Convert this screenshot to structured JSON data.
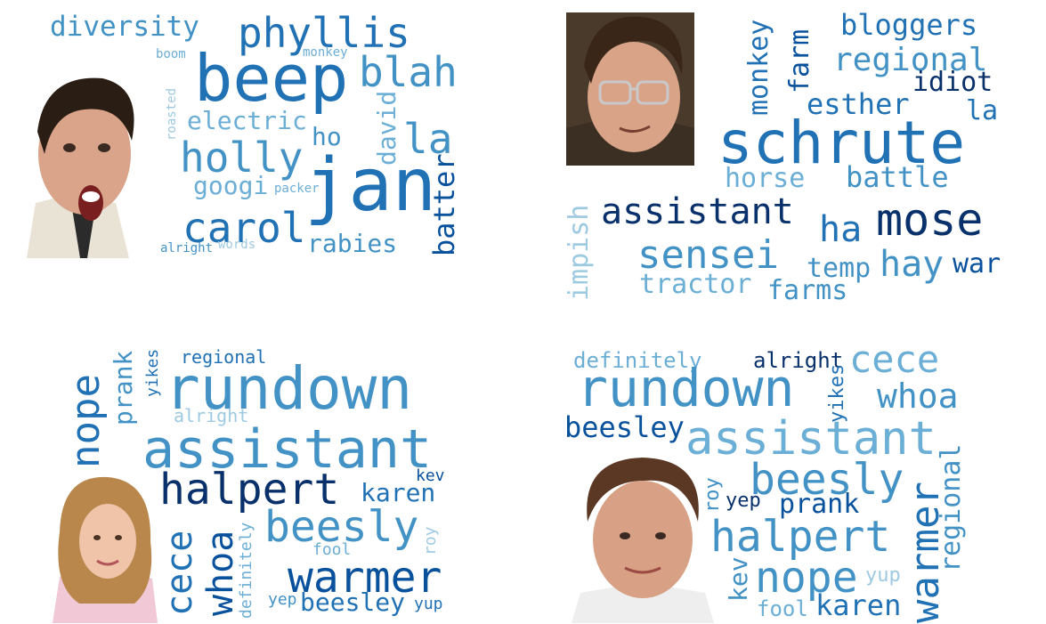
{
  "panels": [
    {
      "words": [
        "diversity",
        "phyllis",
        "boom",
        "monkey",
        "beep",
        "blah",
        "roasted",
        "electric",
        "david",
        "ho",
        "la",
        "holly",
        "googi",
        "packer",
        "jan",
        "batter",
        "carol",
        "rabies",
        "alright",
        "words"
      ]
    },
    {
      "words": [
        "monkey",
        "farm",
        "bloggers",
        "regional",
        "idiot",
        "esther",
        "la",
        "schrute",
        "horse",
        "battle",
        "assistant",
        "mose",
        "ha",
        "impish",
        "sensei",
        "hay",
        "temp",
        "war",
        "tractor",
        "farms"
      ]
    },
    {
      "words": [
        "regional",
        "nope",
        "prank",
        "yikes",
        "rundown",
        "alright",
        "assistant",
        "halpert",
        "kev",
        "karen",
        "cece",
        "whoa",
        "definitely",
        "beesly",
        "roy",
        "fool",
        "warmer",
        "yep",
        "beesley",
        "yup"
      ]
    },
    {
      "words": [
        "definitely",
        "alright",
        "cece",
        "rundown",
        "yikes",
        "whoa",
        "beesley",
        "assistant",
        "beesly",
        "roy",
        "yep",
        "prank",
        "warmer",
        "regional",
        "halpert",
        "kev",
        "nope",
        "yup",
        "fool",
        "karen"
      ]
    }
  ],
  "colors": {
    "palette": [
      "#08306b",
      "#08519c",
      "#2171b5",
      "#4292c6",
      "#6baed6",
      "#9ecae1"
    ],
    "skin": "#d9a48a",
    "hair": "#2a1d14"
  }
}
